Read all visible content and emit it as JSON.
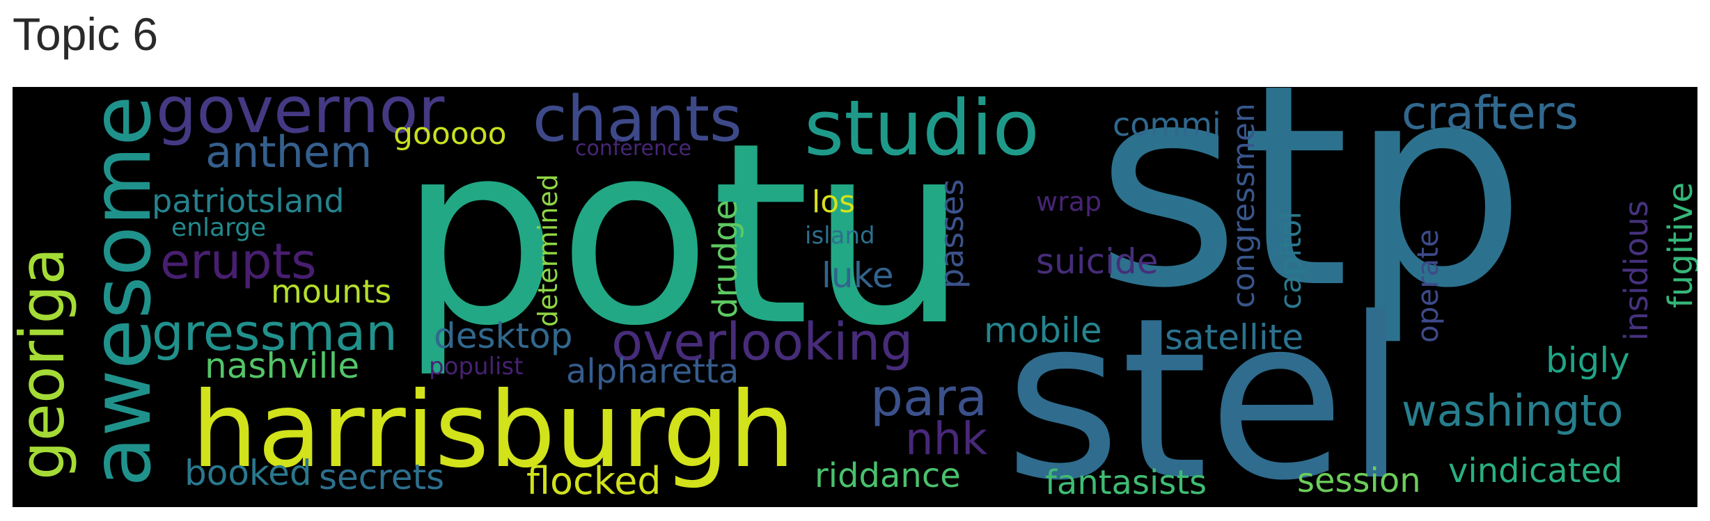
{
  "header": {
    "title": "Topic 6"
  },
  "wordcloud": {
    "background": "#000000",
    "words": [
      {
        "text": "potu",
        "color": "#22a884"
      },
      {
        "text": "stp",
        "color": "#2c728e"
      },
      {
        "text": "stel",
        "color": "#2f6c8e"
      },
      {
        "text": "harrisburgh",
        "color": "#d2e21b"
      },
      {
        "text": "awesome",
        "color": "#20928c"
      },
      {
        "text": "georiga",
        "color": "#a5db36"
      },
      {
        "text": "governor",
        "color": "#443983"
      },
      {
        "text": "chants",
        "color": "#3e4989"
      },
      {
        "text": "studio",
        "color": "#1f9a8a"
      },
      {
        "text": "crafters",
        "color": "#31688e"
      },
      {
        "text": "anthem",
        "color": "#355f8d"
      },
      {
        "text": "gooooo",
        "color": "#c8e020"
      },
      {
        "text": "conference",
        "color": "#482677"
      },
      {
        "text": "commi",
        "color": "#31688e"
      },
      {
        "text": "congressmen",
        "color": "#39568c"
      },
      {
        "text": "patriotsland",
        "color": "#26828e"
      },
      {
        "text": "enlarge",
        "color": "#238a8d"
      },
      {
        "text": "erupts",
        "color": "#481f70"
      },
      {
        "text": "determined",
        "color": "#8fd744"
      },
      {
        "text": "drudge",
        "color": "#5ec962"
      },
      {
        "text": "los",
        "color": "#d8e219"
      },
      {
        "text": "island",
        "color": "#2d708e"
      },
      {
        "text": "wrap",
        "color": "#482475"
      },
      {
        "text": "passes",
        "color": "#3b528b"
      },
      {
        "text": "capitol",
        "color": "#2a788e"
      },
      {
        "text": "operate",
        "color": "#3e4a89"
      },
      {
        "text": "insidious",
        "color": "#46327e"
      },
      {
        "text": "fugitive",
        "color": "#35b779"
      },
      {
        "text": "mounts",
        "color": "#b5de2b"
      },
      {
        "text": "luke",
        "color": "#33638d"
      },
      {
        "text": "suicide",
        "color": "#472d7b"
      },
      {
        "text": "gressman",
        "color": "#21918c"
      },
      {
        "text": "desktop",
        "color": "#31688e"
      },
      {
        "text": "overlooking",
        "color": "#472c7a"
      },
      {
        "text": "mobile",
        "color": "#25848e"
      },
      {
        "text": "satellite",
        "color": "#2c728e"
      },
      {
        "text": "nashville",
        "color": "#54c568"
      },
      {
        "text": "populist",
        "color": "#482173"
      },
      {
        "text": "alpharetta",
        "color": "#365c8d"
      },
      {
        "text": "para",
        "color": "#3b518b"
      },
      {
        "text": "bigly",
        "color": "#20a486"
      },
      {
        "text": "washingto",
        "color": "#277f8e"
      },
      {
        "text": "nhk",
        "color": "#482878"
      },
      {
        "text": "booked",
        "color": "#2a788e"
      },
      {
        "text": "secrets",
        "color": "#2d708e"
      },
      {
        "text": "flocked",
        "color": "#d0e11c"
      },
      {
        "text": "riddance",
        "color": "#4ac16d"
      },
      {
        "text": "fantasists",
        "color": "#3fbc73"
      },
      {
        "text": "session",
        "color": "#6ccd5a"
      },
      {
        "text": "vindicated",
        "color": "#2ab07f"
      }
    ]
  }
}
